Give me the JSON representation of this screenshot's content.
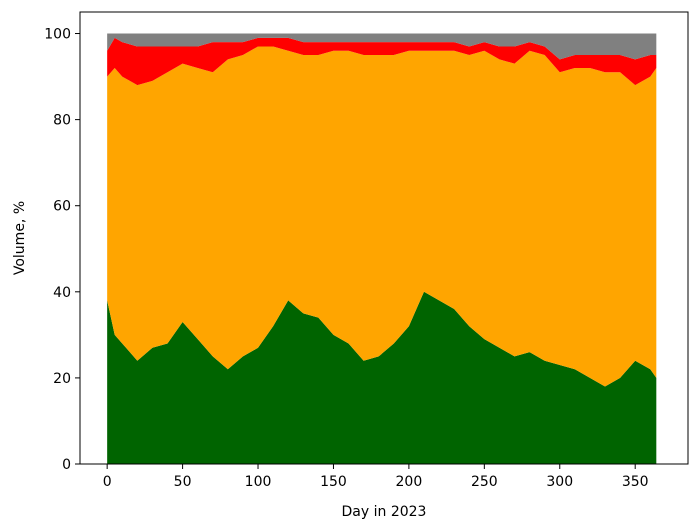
{
  "chart_data": {
    "type": "area",
    "stacked": true,
    "title": "",
    "xlabel": "Day in 2023",
    "ylabel": "Volume, %",
    "xlim": [
      -18,
      385
    ],
    "ylim": [
      0,
      105
    ],
    "x_ticks": [
      0,
      50,
      100,
      150,
      200,
      250,
      300,
      350
    ],
    "y_ticks": [
      0,
      20,
      40,
      60,
      80,
      100
    ],
    "grid": false,
    "legend": "none",
    "x_sampled": [
      0,
      5,
      10,
      20,
      30,
      40,
      50,
      60,
      70,
      80,
      90,
      100,
      110,
      120,
      130,
      140,
      150,
      160,
      170,
      180,
      190,
      200,
      210,
      220,
      230,
      240,
      250,
      260,
      270,
      280,
      290,
      300,
      310,
      320,
      330,
      340,
      350,
      360,
      364
    ],
    "series": [
      {
        "color": "#006400",
        "values": [
          38,
          30,
          28,
          24,
          27,
          28,
          33,
          29,
          25,
          22,
          25,
          27,
          32,
          38,
          35,
          34,
          30,
          28,
          24,
          25,
          28,
          32,
          40,
          38,
          36,
          32,
          29,
          27,
          25,
          26,
          24,
          23,
          22,
          20,
          18,
          20,
          24,
          22,
          20
        ]
      },
      {
        "color": "#ffa500",
        "values": [
          52,
          62,
          62,
          64,
          62,
          63,
          60,
          63,
          66,
          72,
          70,
          70,
          65,
          58,
          60,
          61,
          66,
          68,
          71,
          70,
          67,
          64,
          56,
          58,
          60,
          63,
          67,
          67,
          68,
          70,
          71,
          68,
          70,
          72,
          73,
          71,
          64,
          68,
          72
        ]
      },
      {
        "color": "#ff0000",
        "values": [
          6,
          7,
          8,
          9,
          8,
          6,
          4,
          5,
          7,
          4,
          3,
          2,
          2,
          3,
          3,
          3,
          2,
          2,
          3,
          3,
          3,
          2,
          2,
          2,
          2,
          2,
          2,
          3,
          4,
          2,
          2,
          3,
          3,
          3,
          4,
          4,
          6,
          5,
          3
        ]
      },
      {
        "color": "#808080",
        "values": [
          4,
          1,
          2,
          3,
          3,
          3,
          3,
          3,
          2,
          2,
          2,
          1,
          1,
          1,
          2,
          2,
          2,
          2,
          2,
          2,
          2,
          2,
          2,
          2,
          2,
          3,
          2,
          3,
          3,
          2,
          3,
          6,
          5,
          5,
          5,
          5,
          6,
          5,
          5
        ]
      }
    ]
  }
}
